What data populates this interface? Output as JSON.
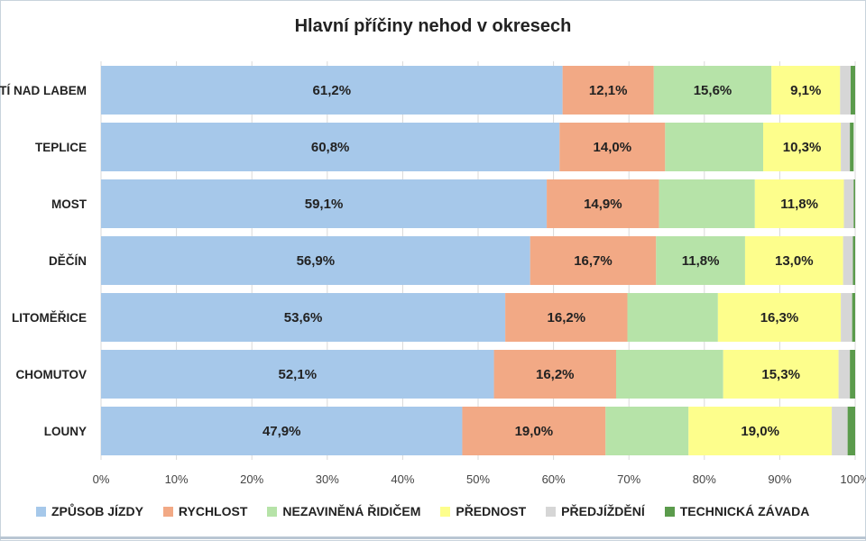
{
  "title": "Hlavní příčiny nehod v okresech",
  "colors": {
    "zpusob": "#a6c8ea",
    "rychlost": "#f2a985",
    "nezavinena": "#b6e3a8",
    "prednost": "#fdfe8c",
    "predjizdeni": "#d6d6d6",
    "technicka": "#5b9b4c"
  },
  "chart_data": {
    "type": "bar",
    "orientation": "horizontal",
    "stacked": true,
    "title": "Hlavní příčiny nehod v okresech",
    "categories": [
      "ÚSTÍ NAD LABEM",
      "TEPLICE",
      "MOST",
      "DĚČÍN",
      "LITOMĚŘICE",
      "CHOMUTOV",
      "LOUNY"
    ],
    "xlim": [
      0,
      100
    ],
    "x_ticks": [
      "0%",
      "10%",
      "20%",
      "30%",
      "40%",
      "50%",
      "60%",
      "70%",
      "80%",
      "90%",
      "100%"
    ],
    "legend_position": "bottom",
    "series": [
      {
        "name": "ZPŮSOB JÍZDY",
        "key": "zpusob",
        "values": [
          61.2,
          60.8,
          59.1,
          56.9,
          53.6,
          52.1,
          47.9
        ],
        "labels": [
          "61,2%",
          "60,8%",
          "59,1%",
          "56,9%",
          "53,6%",
          "52,1%",
          "47,9%"
        ]
      },
      {
        "name": "RYCHLOST",
        "key": "rychlost",
        "values": [
          12.1,
          14.0,
          14.9,
          16.7,
          16.2,
          16.2,
          19.0
        ],
        "labels": [
          "12,1%",
          "14,0%",
          "14,9%",
          "16,7%",
          "16,2%",
          "16,2%",
          "19,0%"
        ]
      },
      {
        "name": "NEZAVINĚNÁ ŘIDIČEM",
        "key": "nezavinena",
        "values": [
          15.6,
          13.0,
          12.7,
          11.8,
          12.0,
          14.2,
          11.0
        ],
        "labels": [
          "15,6%",
          "",
          "",
          "11,8%",
          "",
          "",
          ""
        ]
      },
      {
        "name": "PŘEDNOST",
        "key": "prednost",
        "values": [
          9.1,
          10.3,
          11.8,
          13.0,
          16.3,
          15.3,
          19.0
        ],
        "labels": [
          "9,1%",
          "10,3%",
          "11,8%",
          "13,0%",
          "16,3%",
          "15,3%",
          "19,0%"
        ]
      },
      {
        "name": "PŘEDJÍŽDĚNÍ",
        "key": "predjizdeni",
        "values": [
          1.4,
          1.2,
          1.3,
          1.3,
          1.5,
          1.5,
          2.1
        ],
        "labels": [
          "",
          "",
          "",
          "",
          "",
          "",
          ""
        ]
      },
      {
        "name": "TECHNICKÁ ZÁVADA",
        "key": "technicka",
        "values": [
          0.6,
          0.5,
          0.2,
          0.3,
          0.4,
          0.7,
          1.0
        ],
        "labels": [
          "",
          "",
          "",
          "",
          "",
          "",
          ""
        ]
      }
    ]
  }
}
